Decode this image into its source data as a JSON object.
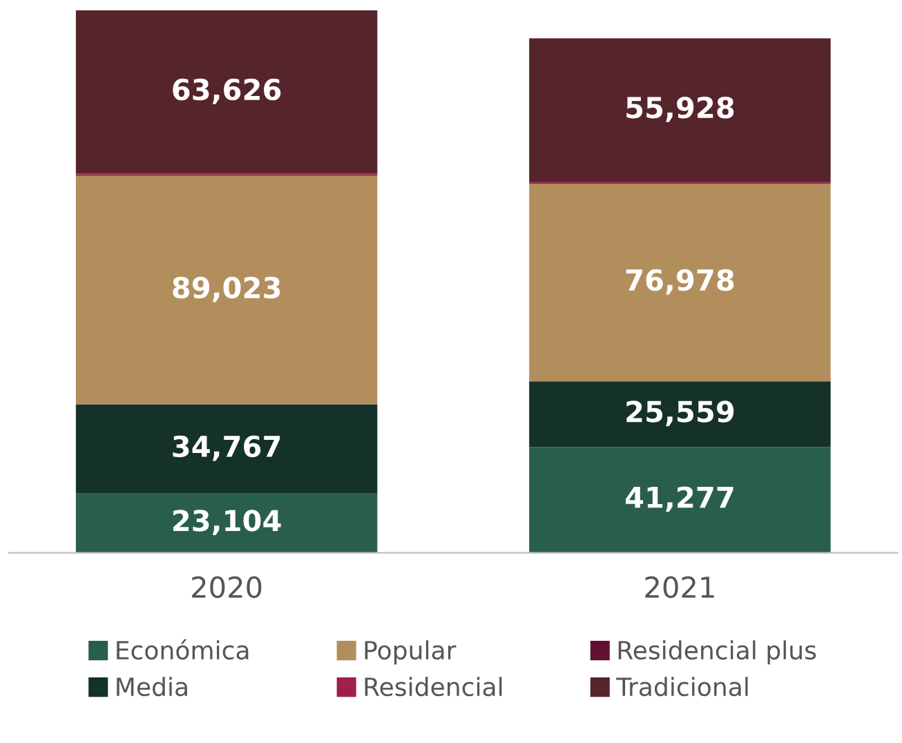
{
  "chart_data": {
    "type": "bar",
    "stacked": true,
    "categories": [
      "2020",
      "2021"
    ],
    "series": [
      {
        "name": "Económica",
        "color": "#2a5e4c",
        "values": [
          23104,
          41277
        ],
        "value_labels": [
          "23,104",
          "41,277"
        ]
      },
      {
        "name": "Media",
        "color": "#14312a",
        "values": [
          34767,
          25559
        ],
        "value_labels": [
          "34,767",
          "25,559"
        ]
      },
      {
        "name": "Popular",
        "color": "#b38e5d",
        "values": [
          89023,
          76978
        ],
        "value_labels": [
          "89,023",
          "76,978"
        ]
      },
      {
        "name": "Residencial",
        "color": "#9d2148",
        "values": [
          700,
          600
        ],
        "value_labels": [
          null,
          null
        ]
      },
      {
        "name": "Residencial plus",
        "color": "#621132",
        "values": [
          200,
          200
        ],
        "value_labels": [
          null,
          null
        ]
      },
      {
        "name": "Tradicional",
        "color": "#56242b",
        "values": [
          63626,
          55928
        ],
        "value_labels": [
          "63,626",
          "55,928"
        ]
      }
    ],
    "legend": "bottom",
    "grid": false
  }
}
